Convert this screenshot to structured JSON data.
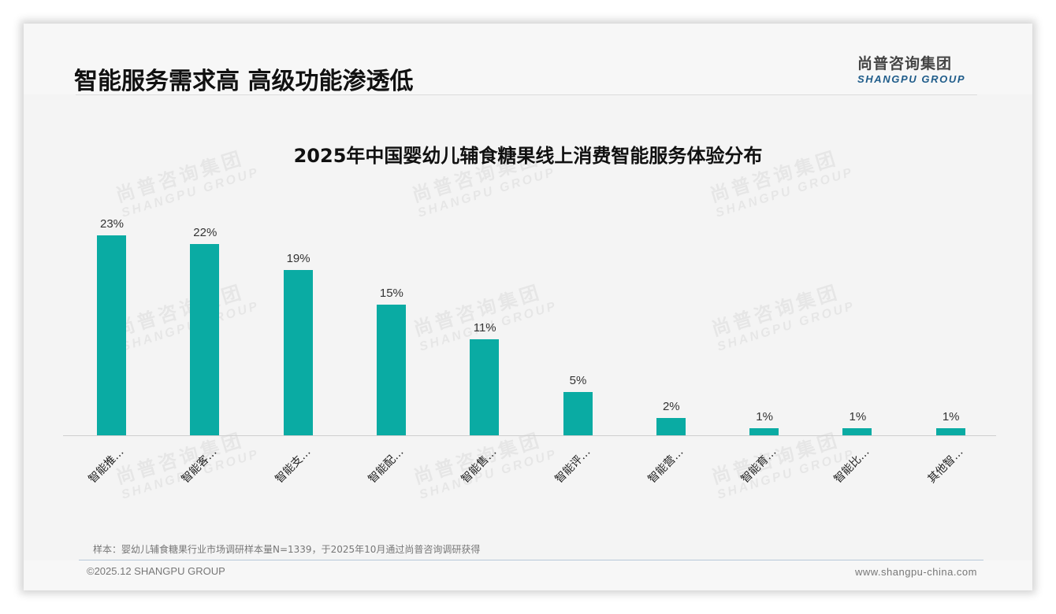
{
  "header": {
    "title": "智能服务需求高 高级功能渗透低",
    "logo_cn": "尚普咨询集团",
    "logo_en": "SHANGPU GROUP"
  },
  "watermark": {
    "cn": "尚普咨询集团",
    "en": "SHANGPU GROUP"
  },
  "chart_data": {
    "type": "bar",
    "title": "2025年中国婴幼儿辅食糖果线上消费智能服务体验分布",
    "categories": [
      "智能推…",
      "智能客…",
      "智能支…",
      "智能配…",
      "智能售…",
      "智能评…",
      "智能营…",
      "智能育…",
      "智能比…",
      "其他智…"
    ],
    "values": [
      23,
      22,
      19,
      15,
      11,
      5,
      2,
      1,
      1,
      1
    ],
    "value_labels": [
      "23%",
      "22%",
      "19%",
      "15%",
      "11%",
      "5%",
      "2%",
      "1%",
      "1%",
      "1%"
    ],
    "xlabel": "",
    "ylabel": "",
    "unit": "%",
    "ylim": [
      0,
      25
    ],
    "grid": false,
    "legend": "none",
    "bar_color": "#0aaba3"
  },
  "footer": {
    "sample_note": "样本：婴幼儿辅食糖果行业市场调研样本量N=1339，于2025年10月通过尚普咨询调研获得",
    "copyright": "©2025.12 SHANGPU GROUP",
    "website": "www.shangpu-china.com"
  },
  "colors": {
    "accent": "#0aaba3",
    "logo_blue": "#1f5c8a",
    "background": "#f4f4f4"
  }
}
